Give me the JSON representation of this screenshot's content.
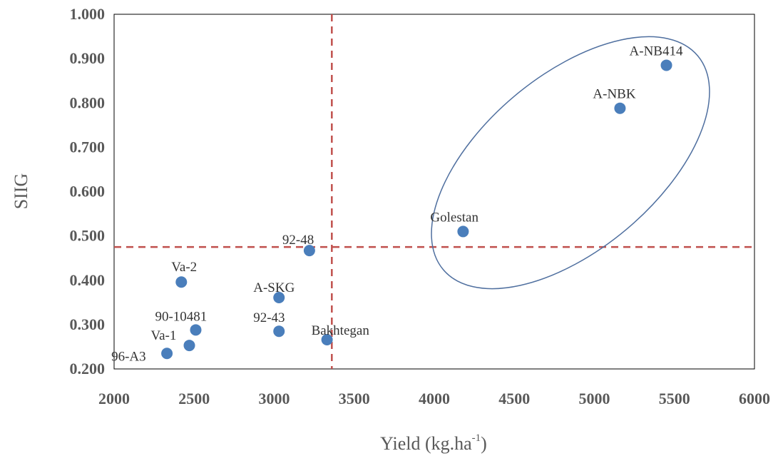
{
  "chart_data": {
    "type": "scatter",
    "xlabel": "Yield (kg.ha",
    "xlabel_sup": "-1",
    "xlabel_close": ")",
    "ylabel": "SIIG",
    "xlim": [
      2000,
      6000
    ],
    "ylim": [
      0.2,
      1.0
    ],
    "x_ticks": [
      "2000",
      "2500",
      "3000",
      "3500",
      "4000",
      "4500",
      "5000",
      "5500",
      "6000"
    ],
    "y_ticks": [
      "0.200",
      "0.300",
      "0.400",
      "0.500",
      "0.600",
      "0.700",
      "0.800",
      "0.900",
      "1.000"
    ],
    "grid": false,
    "marker_color": "#4a7ebb",
    "reference_line_color": "#c0504d",
    "ellipse_color": "#4f6f9f",
    "reference_lines": {
      "vertical_x": 3360,
      "horizontal_y": 0.475
    },
    "points": [
      {
        "label": "A-NB414",
        "x": 5450,
        "y": 0.885
      },
      {
        "label": "A-NBK",
        "x": 5160,
        "y": 0.788
      },
      {
        "label": "Golestan",
        "x": 4180,
        "y": 0.51
      },
      {
        "label": "92-48",
        "x": 3220,
        "y": 0.467
      },
      {
        "label": "Va-2",
        "x": 2420,
        "y": 0.396
      },
      {
        "label": "A-SKG",
        "x": 3030,
        "y": 0.361
      },
      {
        "label": "90-10481",
        "x": 2510,
        "y": 0.288
      },
      {
        "label": "92-43",
        "x": 3030,
        "y": 0.285
      },
      {
        "label": "Bakhtegan",
        "x": 3330,
        "y": 0.266
      },
      {
        "label": "Va-1",
        "x": 2470,
        "y": 0.253
      },
      {
        "label": "96-A3",
        "x": 2330,
        "y": 0.235
      }
    ]
  }
}
